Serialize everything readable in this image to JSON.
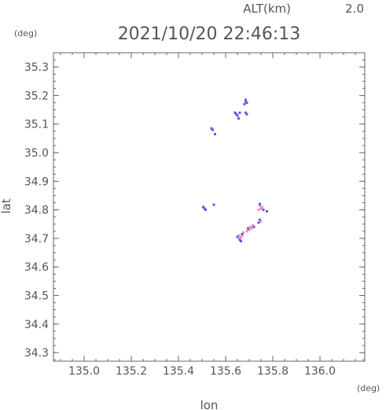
{
  "header": {
    "altitude_label": "ALT(km)",
    "altitude_value": "2.0",
    "timestamp": "2021/10/20 22:46:13",
    "y_unit": "(deg)",
    "x_unit": "(deg)"
  },
  "chart_data": {
    "type": "scatter",
    "xlabel": "lon",
    "ylabel": "lat",
    "xlim": [
      134.87,
      136.19
    ],
    "ylim": [
      34.27,
      35.35
    ],
    "x_ticks": [
      135.0,
      135.2,
      135.4,
      135.6,
      135.8,
      136.0
    ],
    "x_tick_labels": [
      "135.0",
      "135.2",
      "135.4",
      "135.6",
      "135.8",
      "136.0"
    ],
    "y_ticks": [
      34.3,
      34.4,
      34.5,
      34.6,
      34.7,
      34.8,
      34.9,
      35.0,
      35.1,
      35.2,
      35.3
    ],
    "y_tick_labels": [
      "34.3",
      "34.4",
      "34.5",
      "34.6",
      "34.7",
      "34.8",
      "34.9",
      "35.0",
      "35.1",
      "35.2",
      "35.3"
    ],
    "x_minor_step": 0.05,
    "y_minor_step": 0.025,
    "grid": false,
    "colors": {
      "blue": "#5a5ae6",
      "pink": "#f08cb4",
      "axis": "#666666"
    },
    "points": [
      {
        "x": 135.685,
        "y": 35.18,
        "c": "blue"
      },
      {
        "x": 135.69,
        "y": 35.175,
        "c": "blue"
      },
      {
        "x": 135.68,
        "y": 35.17,
        "c": "blue"
      },
      {
        "x": 135.685,
        "y": 35.185,
        "c": "blue"
      },
      {
        "x": 135.645,
        "y": 35.135,
        "c": "blue"
      },
      {
        "x": 135.65,
        "y": 35.13,
        "c": "blue"
      },
      {
        "x": 135.66,
        "y": 35.14,
        "c": "blue"
      },
      {
        "x": 135.655,
        "y": 35.12,
        "c": "blue"
      },
      {
        "x": 135.64,
        "y": 35.14,
        "c": "blue"
      },
      {
        "x": 135.685,
        "y": 35.14,
        "c": "blue"
      },
      {
        "x": 135.69,
        "y": 35.135,
        "c": "blue"
      },
      {
        "x": 135.54,
        "y": 35.085,
        "c": "blue"
      },
      {
        "x": 135.545,
        "y": 35.08,
        "c": "blue"
      },
      {
        "x": 135.555,
        "y": 35.065,
        "c": "blue"
      },
      {
        "x": 135.505,
        "y": 34.81,
        "c": "blue"
      },
      {
        "x": 135.51,
        "y": 34.805,
        "c": "blue"
      },
      {
        "x": 135.515,
        "y": 34.8,
        "c": "blue"
      },
      {
        "x": 135.55,
        "y": 34.818,
        "c": "blue"
      },
      {
        "x": 135.745,
        "y": 34.815,
        "c": "pink"
      },
      {
        "x": 135.75,
        "y": 34.805,
        "c": "pink"
      },
      {
        "x": 135.755,
        "y": 34.81,
        "c": "pink"
      },
      {
        "x": 135.74,
        "y": 34.8,
        "c": "pink"
      },
      {
        "x": 135.745,
        "y": 34.82,
        "c": "blue"
      },
      {
        "x": 135.76,
        "y": 34.8,
        "c": "blue"
      },
      {
        "x": 135.775,
        "y": 34.795,
        "c": "blue"
      },
      {
        "x": 135.745,
        "y": 34.765,
        "c": "blue"
      },
      {
        "x": 135.75,
        "y": 34.76,
        "c": "pink"
      },
      {
        "x": 135.74,
        "y": 34.755,
        "c": "blue"
      },
      {
        "x": 135.705,
        "y": 34.74,
        "c": "pink"
      },
      {
        "x": 135.71,
        "y": 34.735,
        "c": "pink"
      },
      {
        "x": 135.7,
        "y": 34.73,
        "c": "pink"
      },
      {
        "x": 135.69,
        "y": 34.725,
        "c": "pink"
      },
      {
        "x": 135.715,
        "y": 34.745,
        "c": "pink"
      },
      {
        "x": 135.695,
        "y": 34.735,
        "c": "blue"
      },
      {
        "x": 135.72,
        "y": 34.74,
        "c": "blue"
      },
      {
        "x": 135.675,
        "y": 34.72,
        "c": "pink"
      },
      {
        "x": 135.67,
        "y": 34.71,
        "c": "pink"
      },
      {
        "x": 135.665,
        "y": 34.705,
        "c": "pink"
      },
      {
        "x": 135.66,
        "y": 34.7,
        "c": "pink"
      },
      {
        "x": 135.655,
        "y": 34.71,
        "c": "pink"
      },
      {
        "x": 135.66,
        "y": 34.695,
        "c": "blue"
      },
      {
        "x": 135.665,
        "y": 34.69,
        "c": "blue"
      },
      {
        "x": 135.65,
        "y": 34.705,
        "c": "blue"
      },
      {
        "x": 135.67,
        "y": 34.715,
        "c": "blue"
      }
    ]
  }
}
